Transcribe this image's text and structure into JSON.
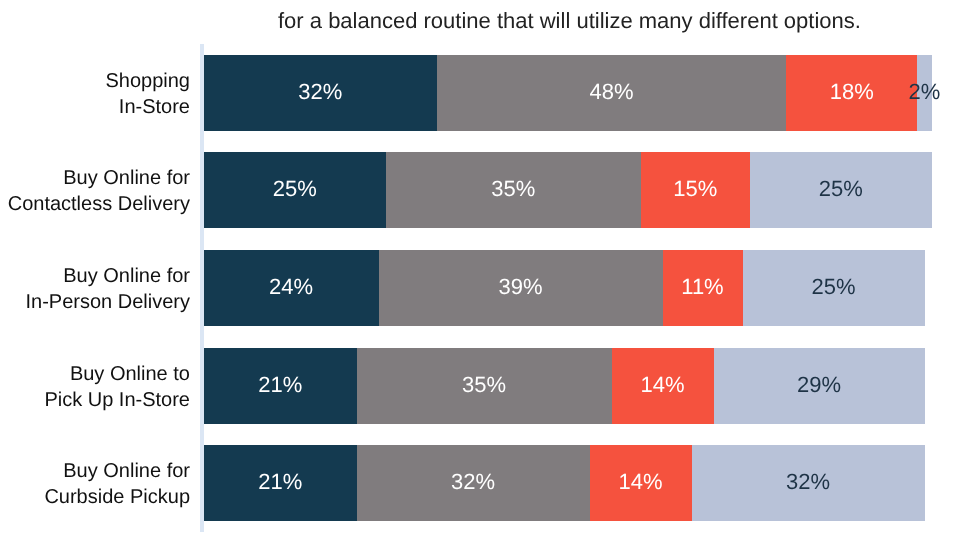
{
  "chart_data": {
    "type": "bar",
    "orientation": "horizontal",
    "stacked": true,
    "subtitle": "for a balanced routine that will utilize many different options.",
    "categories": [
      "Shopping\nIn-Store",
      "Buy Online for\nContactless Delivery",
      "Buy Online for\nIn-Person Delivery",
      "Buy Online to\nPick Up In-Store",
      "Buy Online for\nCurbside Pickup"
    ],
    "series": [
      {
        "color": "#143a50",
        "values": [
          32,
          25,
          24,
          21,
          21
        ],
        "value_labels": [
          "32%",
          "25%",
          "24%",
          "21%",
          "21%"
        ]
      },
      {
        "color": "#807c7e",
        "values": [
          48,
          35,
          39,
          35,
          32
        ],
        "value_labels": [
          "48%",
          "35%",
          "39%",
          "35%",
          "32%"
        ]
      },
      {
        "color": "#f5523e",
        "values": [
          18,
          15,
          11,
          14,
          14
        ],
        "value_labels": [
          "18%",
          "15%",
          "11%",
          "14%",
          "14%"
        ]
      },
      {
        "color": "#b8c2d8",
        "values": [
          2,
          25,
          25,
          29,
          32
        ],
        "value_labels": [
          "2%",
          "25%",
          "25%",
          "29%",
          "32%"
        ]
      }
    ],
    "xlim": [
      0,
      100
    ],
    "tick_labels": "y"
  }
}
